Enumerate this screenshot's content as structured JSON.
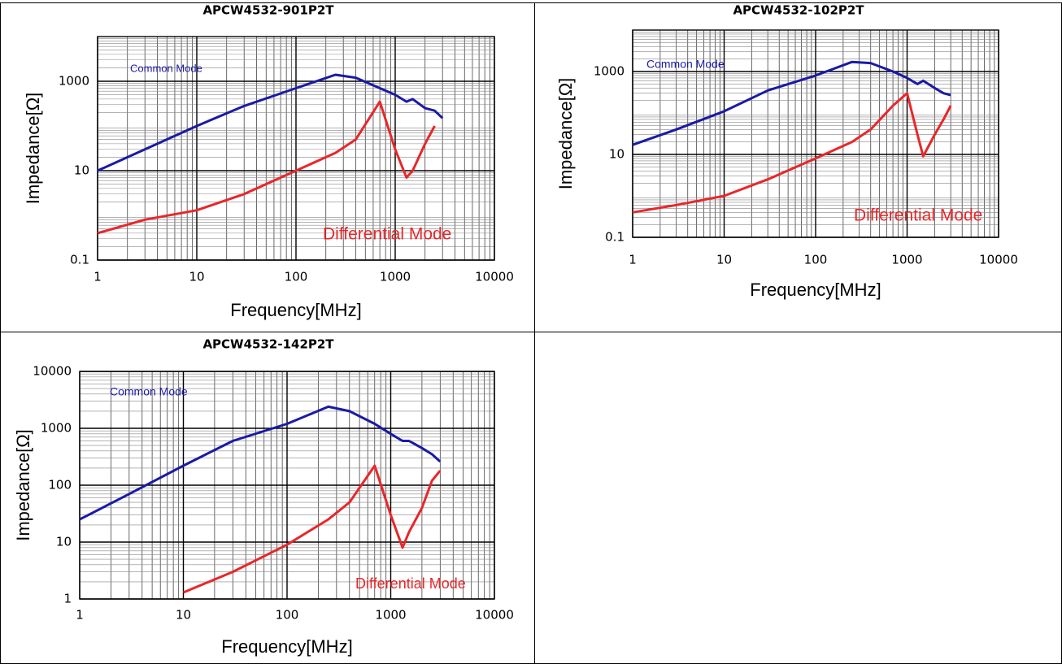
{
  "chart_data": [
    {
      "type": "line",
      "title": "APCW4532-901P2T",
      "x_label": "Frequency[MHz]",
      "y_label": "Impedance[Ω]",
      "log_x": true,
      "log_y": true,
      "grid": true,
      "minor_grid": true,
      "xlim": [
        1,
        10000
      ],
      "xticks": [
        1,
        10,
        100,
        1000,
        10000
      ],
      "ylim": [
        0.1,
        10000
      ],
      "yticks": [
        0.1,
        10,
        1000
      ],
      "x": [
        1,
        3,
        10,
        30,
        100,
        250,
        400,
        700,
        1000,
        1300,
        1500,
        2000,
        2500,
        3000
      ],
      "series": [
        {
          "name": "Common Mode",
          "color": "#1a1aa6",
          "values": [
            10,
            30,
            100,
            280,
            700,
            1400,
            1200,
            700,
            500,
            350,
            400,
            250,
            220,
            150
          ]
        },
        {
          "name": "Differential Mode",
          "color": "#e8272a",
          "values": [
            0.4,
            0.8,
            1.3,
            3,
            10,
            25,
            50,
            350,
            30,
            7,
            10,
            40,
            100,
            null
          ]
        }
      ]
    },
    {
      "type": "line",
      "title": "APCW4532-102P2T",
      "x_label": "Frequency[MHz]",
      "y_label": "Impedance[Ω]",
      "log_x": true,
      "log_y": true,
      "grid": true,
      "minor_grid": true,
      "xlim": [
        1,
        10000
      ],
      "xticks": [
        1,
        10,
        100,
        1000,
        10000
      ],
      "ylim": [
        0.1,
        10000
      ],
      "yticks": [
        0.1,
        10,
        1000
      ],
      "x": [
        1,
        3,
        10,
        30,
        100,
        250,
        400,
        700,
        1000,
        1300,
        1500,
        2000,
        2500,
        3000
      ],
      "series": [
        {
          "name": "Common Mode",
          "color": "#1a1aa6",
          "values": [
            17,
            40,
            110,
            350,
            800,
            1700,
            1600,
            1000,
            700,
            500,
            600,
            400,
            300,
            270
          ]
        },
        {
          "name": "Differential Mode",
          "color": "#e8272a",
          "values": [
            0.4,
            0.6,
            1,
            2.5,
            8,
            20,
            40,
            150,
            300,
            30,
            9,
            30,
            70,
            150
          ]
        }
      ]
    },
    {
      "type": "line",
      "title": "APCW4532-142P2T",
      "x_label": "Frequency[MHz]",
      "y_label": "Impedance[Ω]",
      "log_x": true,
      "log_y": true,
      "grid": true,
      "minor_grid": true,
      "xlim": [
        1,
        10000
      ],
      "xticks": [
        1,
        10,
        100,
        1000,
        10000
      ],
      "ylim": [
        1,
        10000
      ],
      "yticks": [
        1,
        10,
        100,
        1000,
        10000
      ],
      "x": [
        1,
        3,
        10,
        30,
        100,
        250,
        400,
        700,
        1000,
        1300,
        1500,
        2000,
        2500,
        3000
      ],
      "series": [
        {
          "name": "Common Mode",
          "color": "#1a1aa6",
          "values": [
            25,
            70,
            220,
            600,
            1200,
            2400,
            2000,
            1200,
            800,
            600,
            600,
            450,
            350,
            260
          ]
        },
        {
          "name": "Differential Mode",
          "color": "#e8272a",
          "values": [
            null,
            null,
            1.3,
            3,
            9,
            25,
            50,
            220,
            30,
            8,
            15,
            40,
            120,
            180
          ]
        }
      ]
    }
  ]
}
